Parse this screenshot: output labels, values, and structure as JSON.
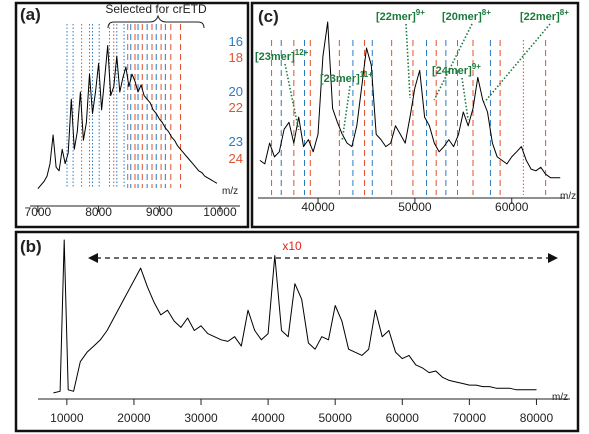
{
  "chart_data": [
    {
      "type": "line",
      "panel_label": "(a)",
      "x_label": "m/z",
      "color": "#000000",
      "xlim": [
        6870,
        10330
      ],
      "ylim": [
        0,
        100
      ],
      "xticks": [
        7000,
        8000,
        9000,
        10000
      ],
      "annotation": "Selected for crETD",
      "x": [
        7000,
        7050,
        7100,
        7150,
        7200,
        7250,
        7300,
        7350,
        7400,
        7450,
        7500,
        7550,
        7600,
        7650,
        7700,
        7750,
        7800,
        7850,
        7900,
        7950,
        8000,
        8050,
        8100,
        8150,
        8200,
        8250,
        8300,
        8350,
        8400,
        8450,
        8500,
        8550,
        8600,
        8650,
        8700,
        8750,
        8800,
        8850,
        8900,
        8950,
        9000,
        9050,
        9100,
        9150,
        9200,
        9250,
        9300,
        9350,
        9400,
        9450,
        9500,
        9550,
        9600,
        9650,
        9700,
        9750,
        9800,
        9850,
        9900,
        9950
      ],
      "values": [
        8,
        10,
        12,
        15,
        22,
        38,
        20,
        18,
        30,
        22,
        28,
        58,
        30,
        40,
        62,
        35,
        45,
        72,
        50,
        62,
        78,
        52,
        70,
        88,
        60,
        65,
        82,
        62,
        70,
        76,
        65,
        72,
        68,
        62,
        66,
        60,
        58,
        56,
        52,
        50,
        47,
        45,
        42,
        40,
        37,
        35,
        32,
        30,
        28,
        26,
        24,
        22,
        20,
        18,
        17,
        15,
        14,
        13,
        12,
        11
      ],
      "charge_labels": [
        {
          "charge": 16,
          "color": "#2b7bc0"
        },
        {
          "charge": 18,
          "color": "#e2522e"
        },
        {
          "charge": 20,
          "color": "#2b7bc0"
        },
        {
          "charge": 22,
          "color": "#e2522e"
        },
        {
          "charge": 23,
          "color": "#2b7bc0"
        },
        {
          "charge": 24,
          "color": "#e2522e"
        }
      ],
      "reference_lines": [
        {
          "x": 7480,
          "color": "#2b7bc0",
          "style": "dotted"
        },
        {
          "x": 7580,
          "color": "#2b7bc0",
          "style": "dotted"
        },
        {
          "x": 7720,
          "color": "#e2522e",
          "style": "dotted"
        },
        {
          "x": 7850,
          "color": "#e2522e",
          "style": "dotted"
        },
        {
          "x": 7900,
          "color": "#2b7bc0",
          "style": "dotted"
        },
        {
          "x": 8010,
          "color": "#2b7bc0",
          "style": "dotted"
        },
        {
          "x": 8180,
          "color": "#e2522e",
          "style": "dotted"
        },
        {
          "x": 8250,
          "color": "#e2522e",
          "style": "dotted"
        },
        {
          "x": 8300,
          "color": "#2b7bc0",
          "style": "dotted"
        },
        {
          "x": 8420,
          "color": "#2b7bc0",
          "style": "dotted"
        },
        {
          "x": 8480,
          "color": "#e2522e",
          "style": "dashed"
        },
        {
          "x": 8530,
          "color": "#2b7bc0",
          "style": "dashed"
        },
        {
          "x": 8600,
          "color": "#e2522e",
          "style": "dashed"
        },
        {
          "x": 8650,
          "color": "#2b7bc0",
          "style": "dashed"
        },
        {
          "x": 8720,
          "color": "#e2522e",
          "style": "dashed"
        },
        {
          "x": 8800,
          "color": "#2b7bc0",
          "style": "dashed"
        },
        {
          "x": 8880,
          "color": "#e2522e",
          "style": "dashed"
        },
        {
          "x": 8950,
          "color": "#2b7bc0",
          "style": "dashed"
        },
        {
          "x": 9030,
          "color": "#e2522e",
          "style": "dashed"
        },
        {
          "x": 9100,
          "color": "#2b7bc0",
          "style": "dashed"
        },
        {
          "x": 9190,
          "color": "#e2522e",
          "style": "dashed"
        },
        {
          "x": 9350,
          "color": "#e2522e",
          "style": "dashed"
        }
      ]
    },
    {
      "type": "line",
      "panel_label": "(b)",
      "x_label": "m/z",
      "color": "#000000",
      "xlim": [
        5700,
        85000
      ],
      "ylim": [
        0,
        100
      ],
      "xticks": [
        10000,
        20000,
        30000,
        40000,
        50000,
        60000,
        70000,
        80000
      ],
      "annotation": "x10",
      "annotation_color": "#e2231a",
      "x": [
        8000,
        9000,
        9600,
        10200,
        11000,
        12000,
        13000,
        14000,
        15000,
        16000,
        17000,
        18000,
        19000,
        20000,
        21000,
        22000,
        23000,
        24000,
        25000,
        26000,
        27000,
        28000,
        29000,
        30000,
        31000,
        32000,
        33000,
        34000,
        35000,
        36000,
        37000,
        38000,
        39000,
        40000,
        41000,
        42000,
        43000,
        44000,
        45000,
        46000,
        47000,
        48000,
        49000,
        50000,
        51000,
        52000,
        53000,
        54000,
        55000,
        56000,
        57000,
        58000,
        59000,
        60000,
        61000,
        62000,
        63000,
        64000,
        65000,
        66000,
        67000,
        68000,
        69000,
        70000,
        71000,
        72000,
        73000,
        74000,
        75000,
        76000,
        77000,
        78000,
        79000,
        80000
      ],
      "values": [
        2,
        3,
        100,
        4,
        3,
        22,
        28,
        32,
        36,
        42,
        50,
        58,
        66,
        74,
        82,
        70,
        60,
        52,
        55,
        48,
        44,
        50,
        42,
        45,
        40,
        38,
        36,
        35,
        38,
        32,
        55,
        42,
        36,
        40,
        90,
        42,
        38,
        72,
        62,
        34,
        30,
        38,
        36,
        58,
        48,
        30,
        28,
        26,
        30,
        55,
        38,
        42,
        28,
        24,
        26,
        20,
        18,
        15,
        16,
        12,
        10,
        9,
        8,
        7,
        7,
        6,
        6,
        5,
        5,
        5,
        4,
        4,
        4,
        4
      ]
    },
    {
      "type": "line",
      "panel_label": "(c)",
      "x_label": "m/z",
      "color": "#000000",
      "xlim": [
        33800,
        65500
      ],
      "ylim": [
        0,
        100
      ],
      "xticks": [
        40000,
        50000,
        60000
      ],
      "x": [
        34000,
        34500,
        35000,
        35500,
        36000,
        36500,
        37000,
        37500,
        38000,
        38500,
        39000,
        39500,
        40000,
        40500,
        41000,
        41500,
        42000,
        42500,
        43000,
        43500,
        44000,
        44500,
        45000,
        45500,
        46000,
        46500,
        47000,
        47500,
        48000,
        48500,
        49000,
        49500,
        50000,
        50500,
        51000,
        51500,
        52000,
        52500,
        53000,
        53500,
        54000,
        54500,
        55000,
        55500,
        56000,
        56500,
        57000,
        57500,
        58000,
        58500,
        59000,
        59500,
        60000,
        60500,
        61000,
        61500,
        62000,
        62500,
        63000,
        63500,
        64000,
        64500,
        65000
      ],
      "values": [
        20,
        18,
        30,
        22,
        25,
        38,
        42,
        30,
        45,
        28,
        32,
        25,
        35,
        80,
        100,
        50,
        42,
        35,
        30,
        28,
        40,
        62,
        85,
        75,
        35,
        32,
        28,
        30,
        40,
        35,
        30,
        45,
        62,
        72,
        45,
        40,
        30,
        25,
        28,
        32,
        28,
        35,
        48,
        40,
        50,
        68,
        55,
        48,
        30,
        22,
        20,
        18,
        22,
        25,
        28,
        20,
        15,
        14,
        16,
        12,
        10,
        10,
        10
      ],
      "annotation_color": "#1b7a3c",
      "annotations": [
        {
          "label": "[23mer]",
          "charge": "12+",
          "x": 38000
        },
        {
          "label": "[23mer]",
          "charge": "11+",
          "x": 42500
        },
        {
          "label": "[22mer]",
          "charge": "9+",
          "x": 49500
        },
        {
          "label": "[20mer]",
          "charge": "8+",
          "x": 52000
        },
        {
          "label": "[24mer]",
          "charge": "9+",
          "x": 55500
        },
        {
          "label": "[22mer]",
          "charge": "8+",
          "x": 57200
        }
      ],
      "reference_lines": [
        {
          "x": 35200,
          "color": "#e2522e",
          "style": "dashed"
        },
        {
          "x": 36200,
          "color": "#2b7bc0",
          "style": "dashed"
        },
        {
          "x": 37500,
          "color": "#e2522e",
          "style": "dashed"
        },
        {
          "x": 38600,
          "color": "#2b7bc0",
          "style": "dashed"
        },
        {
          "x": 39200,
          "color": "#e2522e",
          "style": "dashed"
        },
        {
          "x": 42200,
          "color": "#e2522e",
          "style": "dashed"
        },
        {
          "x": 43600,
          "color": "#2b7bc0",
          "style": "dashed"
        },
        {
          "x": 44800,
          "color": "#e2522e",
          "style": "dashed"
        },
        {
          "x": 45600,
          "color": "#2b7bc0",
          "style": "dashed"
        },
        {
          "x": 47600,
          "color": "#e2522e",
          "style": "dashed"
        },
        {
          "x": 49800,
          "color": "#e2522e",
          "style": "dashed"
        },
        {
          "x": 51200,
          "color": "#2b7bc0",
          "style": "dashed"
        },
        {
          "x": 52200,
          "color": "#e2522e",
          "style": "dashed"
        },
        {
          "x": 53200,
          "color": "#2b7bc0",
          "style": "dashed"
        },
        {
          "x": 54400,
          "color": "#e2522e",
          "style": "dashed"
        },
        {
          "x": 56000,
          "color": "#e2522e",
          "style": "dashed"
        },
        {
          "x": 57800,
          "color": "#2b7bc0",
          "style": "dashed"
        },
        {
          "x": 58800,
          "color": "#e2522e",
          "style": "dashed"
        },
        {
          "x": 61200,
          "color": "#e2522e",
          "style": "dotted"
        },
        {
          "x": 63500,
          "color": "#e2522e",
          "style": "dashed"
        }
      ]
    }
  ]
}
